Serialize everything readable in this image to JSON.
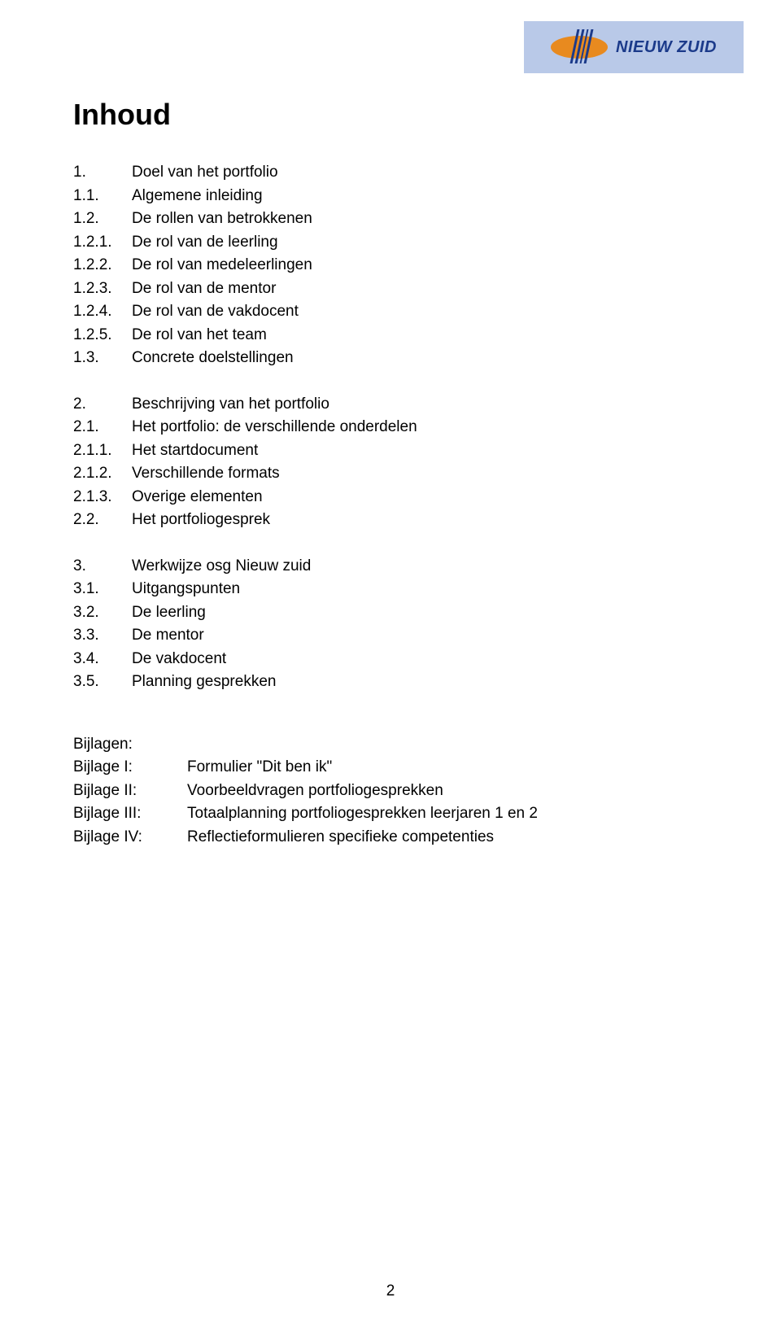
{
  "logo": {
    "brand_text": "NIEUW ZUID",
    "bg_color": "#b9c9e8",
    "oval_color": "#e88a1f",
    "stripe_color": "#1b3a8a",
    "text_color": "#1b3a8a"
  },
  "title": "Inhoud",
  "toc": {
    "block1": [
      {
        "num": "1.",
        "text": "Doel van het portfolio"
      },
      {
        "num": "1.1.",
        "text": "Algemene inleiding"
      },
      {
        "num": "1.2.",
        "text": "De rollen van betrokkenen"
      },
      {
        "num": "1.2.1.",
        "text": "De rol van de leerling"
      },
      {
        "num": "1.2.2.",
        "text": "De rol van medeleerlingen"
      },
      {
        "num": "1.2.3.",
        "text": "De rol van de mentor"
      },
      {
        "num": "1.2.4.",
        "text": "De rol van de vakdocent"
      },
      {
        "num": "1.2.5.",
        "text": "De rol van het team"
      },
      {
        "num": "1.3.",
        "text": "Concrete doelstellingen"
      }
    ],
    "block2": [
      {
        "num": "2.",
        "text": "Beschrijving van het portfolio"
      },
      {
        "num": "2.1.",
        "text": "Het portfolio: de verschillende onderdelen"
      },
      {
        "num": "2.1.1.",
        "text": "Het startdocument"
      },
      {
        "num": "2.1.2.",
        "text": "Verschillende formats"
      },
      {
        "num": "2.1.3.",
        "text": "Overige elementen"
      },
      {
        "num": "2.2.",
        "text": "Het portfoliogesprek"
      }
    ],
    "block3": [
      {
        "num": "3.",
        "text": "Werkwijze osg Nieuw zuid"
      },
      {
        "num": "3.1.",
        "text": "Uitgangspunten"
      },
      {
        "num": "3.2.",
        "text": "De leerling"
      },
      {
        "num": "3.3.",
        "text": "De mentor"
      },
      {
        "num": "3.4.",
        "text": "De vakdocent"
      },
      {
        "num": "3.5.",
        "text": "Planning gesprekken"
      }
    ]
  },
  "bijlagen": {
    "heading": "Bijlagen:",
    "items": [
      {
        "label": "Bijlage I:",
        "text": "Formulier \"Dit ben ik\""
      },
      {
        "label": "Bijlage II:",
        "text": "Voorbeeldvragen portfoliogesprekken"
      },
      {
        "label": "Bijlage III:",
        "text": "Totaalplanning portfoliogesprekken leerjaren 1 en 2"
      },
      {
        "label": "Bijlage IV:",
        "text": "Reflectieformulieren specifieke competenties"
      }
    ]
  },
  "page_number": "2",
  "typography": {
    "body_font": "Arial",
    "body_size_pt": 14,
    "title_size_pt": 27,
    "text_color": "#000000",
    "background_color": "#ffffff"
  }
}
